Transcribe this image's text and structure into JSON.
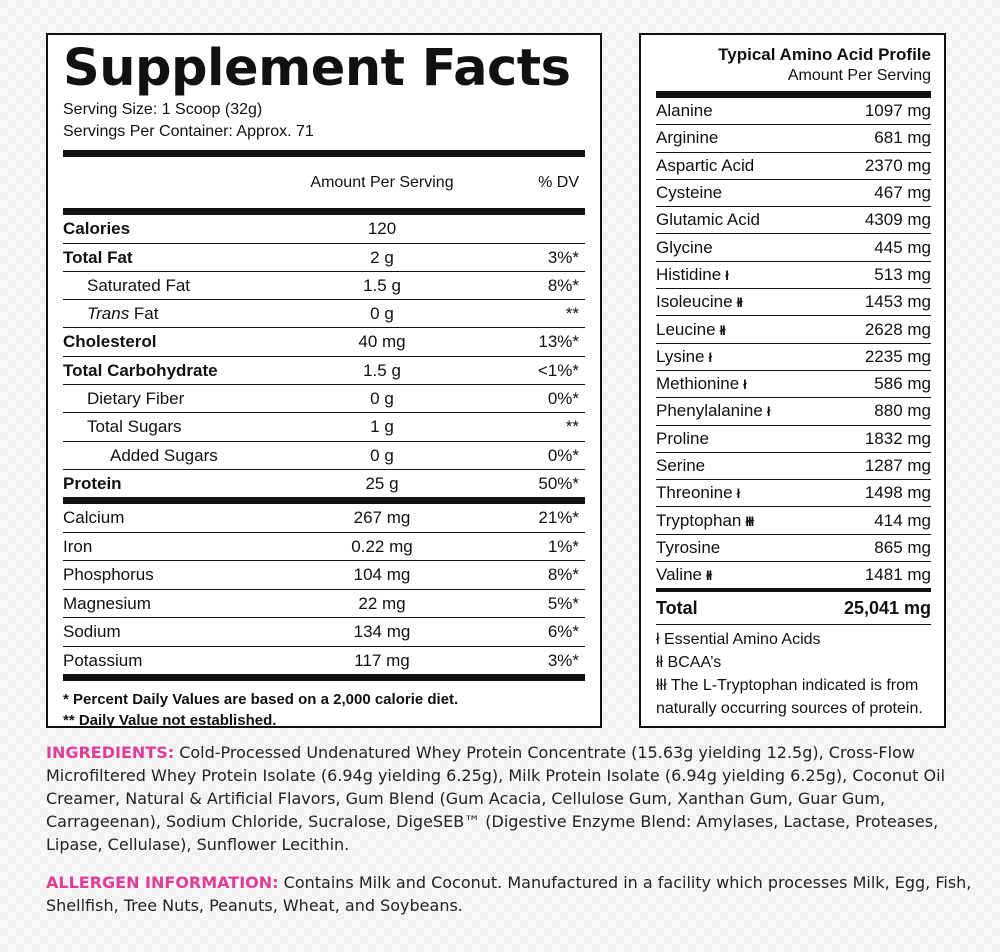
{
  "supplement_facts": {
    "title": "Supplement Facts",
    "serving_size": "Serving Size: 1 Scoop (32g)",
    "servings_per_container": "Servings Per Container: Approx. 71",
    "col_amount": "Amount Per Serving",
    "col_dv": "% DV",
    "rows": [
      {
        "name": "Calories",
        "amount": "120",
        "dv": ""
      },
      {
        "name": "Total Fat",
        "amount": "2 g",
        "dv": "3%*"
      },
      {
        "name": "Saturated Fat",
        "amount": "1.5 g",
        "dv": "8%*"
      },
      {
        "name_italic": "Trans",
        "name_rest": " Fat",
        "amount": "0 g",
        "dv": "**"
      },
      {
        "name": "Cholesterol",
        "amount": "40 mg",
        "dv": "13%*"
      },
      {
        "name": "Total Carbohydrate",
        "amount": "1.5 g",
        "dv": "<1%*"
      },
      {
        "name": "Dietary Fiber",
        "amount": "0 g",
        "dv": "0%*"
      },
      {
        "name": "Total Sugars",
        "amount": "1 g",
        "dv": "**"
      },
      {
        "name": "Added Sugars",
        "amount": "0 g",
        "dv": "0%*"
      },
      {
        "name": "Protein",
        "amount": "25 g",
        "dv": "50%*"
      }
    ],
    "minerals": [
      {
        "name": "Calcium",
        "amount": "267 mg",
        "dv": "21%*"
      },
      {
        "name": "Iron",
        "amount": "0.22 mg",
        "dv": "1%*"
      },
      {
        "name": "Phosphorus",
        "amount": "104 mg",
        "dv": "8%*"
      },
      {
        "name": "Magnesium",
        "amount": "22 mg",
        "dv": "5%*"
      },
      {
        "name": "Sodium",
        "amount": "134 mg",
        "dv": "6%*"
      },
      {
        "name": "Potassium",
        "amount": "117 mg",
        "dv": "3%*"
      }
    ],
    "footnote1": "* Percent Daily Values are based on a 2,000 calorie diet.",
    "footnote2": "** Daily Value not established."
  },
  "amino_profile": {
    "title": "Typical Amino Acid Profile",
    "subtitle": "Amount Per Serving",
    "rows": [
      {
        "name": "Alanine",
        "mark": "",
        "value": "1097 mg"
      },
      {
        "name": "Arginine",
        "mark": "",
        "value": "681 mg"
      },
      {
        "name": "Aspartic Acid",
        "mark": "",
        "value": "2370 mg"
      },
      {
        "name": "Cysteine",
        "mark": "",
        "value": "467 mg"
      },
      {
        "name": "Glutamic Acid",
        "mark": "",
        "value": "4309 mg"
      },
      {
        "name": "Glycine",
        "mark": "",
        "value": "445 mg"
      },
      {
        "name": "Histidine",
        "mark": "ł",
        "value": "513 mg"
      },
      {
        "name": "Isoleucine",
        "mark": "łł",
        "value": "1453 mg"
      },
      {
        "name": "Leucine",
        "mark": "łł",
        "value": "2628 mg"
      },
      {
        "name": "Lysine",
        "mark": "ł",
        "value": "2235 mg"
      },
      {
        "name": "Methionine",
        "mark": "ł",
        "value": "586 mg"
      },
      {
        "name": "Phenylalanine",
        "mark": "ł",
        "value": "880 mg"
      },
      {
        "name": "Proline",
        "mark": "",
        "value": "1832 mg"
      },
      {
        "name": "Serine",
        "mark": "",
        "value": "1287 mg"
      },
      {
        "name": "Threonine",
        "mark": "ł",
        "value": "1498 mg"
      },
      {
        "name": "Tryptophan",
        "mark": "łłł",
        "value": "414 mg"
      },
      {
        "name": "Tyrosine",
        "mark": "",
        "value": "865 mg"
      },
      {
        "name": "Valine",
        "mark": "łł",
        "value": "1481 mg"
      }
    ],
    "total_label": "Total",
    "total_value": "25,041 mg",
    "note1": "ł Essential Amino Acids",
    "note2": "łł BCAA’s",
    "note3": "łłł The L-Tryptophan indicated is from",
    "note4": "naturally occurring sources of protein."
  },
  "ingredients": {
    "label": "INGREDIENTS:",
    "text": " Cold-Processed Undenatured Whey Protein Concentrate (15.63g yielding 12.5g), Cross-Flow Microfiltered Whey Protein Isolate (6.94g yielding 6.25g), Milk Protein Isolate (6.94g yielding 6.25g), Coconut Oil Creamer, Natural & Artificial Flavors, Gum Blend (Gum Acacia, Cellulose Gum, Xanthan Gum, Guar Gum, Carrageenan), Sodium Chloride, Sucralose, DigeSEB™ (Digestive Enzyme Blend: Amylases, Lactase, Proteases, Lipase, Cellulase), Sunflower Lecithin."
  },
  "allergen": {
    "label": "ALLERGEN INFORMATION:",
    "text": " Contains Milk and Coconut. Manufactured in a facility which processes Milk, Egg, Fish, Shellfish, Tree Nuts, Peanuts, Wheat, and Soybeans."
  },
  "colors": {
    "accent": "#e23c99",
    "border": "#111111",
    "panel_bg": "#ffffff"
  }
}
